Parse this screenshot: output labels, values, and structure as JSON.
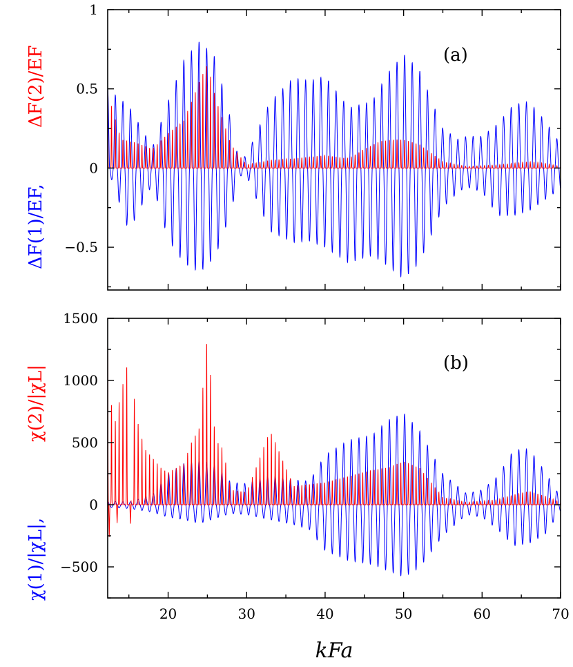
{
  "colors": {
    "series1": "#0000ff",
    "series2": "#ff0000",
    "axes": "#000000"
  },
  "chart_data": [
    {
      "type": "line",
      "panel_tag": "(a)",
      "xlim": [
        12.3,
        70
      ],
      "ylim": [
        -0.77,
        1
      ],
      "x_ticks": [
        20,
        30,
        40,
        50,
        60,
        70
      ],
      "y_ticks": [
        -0.5,
        0,
        0.5,
        1
      ],
      "y_tick_labels": [
        "−0.5",
        "0",
        "0.5",
        "1"
      ],
      "ylabel_series1": "ΔF(1)/EF,",
      "ylabel_series2": "ΔF(2)/EF",
      "series": [
        {
          "color": "#0000ff",
          "kind": "oscillating",
          "envelope_x": [
            12.3,
            15,
            18,
            20,
            22,
            24,
            26,
            28,
            29,
            30,
            33,
            36,
            38,
            40,
            43,
            46,
            48,
            50,
            52,
            55,
            57,
            58,
            60,
            62,
            64,
            66,
            68,
            70
          ],
          "envelope_upper": [
            0.5,
            0.39,
            0.13,
            0.42,
            0.68,
            0.8,
            0.7,
            0.3,
            0.05,
            0.08,
            0.42,
            0.57,
            0.55,
            0.58,
            0.38,
            0.42,
            0.6,
            0.72,
            0.62,
            0.25,
            0.18,
            0.2,
            0.2,
            0.28,
            0.4,
            0.42,
            0.3,
            0.15
          ],
          "envelope_lower": [
            0.0,
            -0.4,
            -0.1,
            -0.45,
            -0.6,
            -0.66,
            -0.56,
            -0.28,
            -0.05,
            -0.05,
            -0.4,
            -0.47,
            -0.46,
            -0.5,
            -0.6,
            -0.55,
            -0.62,
            -0.7,
            -0.6,
            -0.25,
            -0.15,
            -0.12,
            -0.15,
            -0.3,
            -0.3,
            -0.27,
            -0.2,
            -0.13
          ],
          "period": 0.97
        },
        {
          "color": "#ff0000",
          "kind": "peaked",
          "envelope_x": [
            12.3,
            14,
            16,
            18,
            20,
            22,
            24,
            25,
            26,
            27,
            28,
            30,
            33,
            36,
            40,
            43,
            45,
            47,
            49,
            50,
            52,
            55,
            58,
            62,
            64,
            66,
            68,
            70
          ],
          "envelope_upper": [
            0.48,
            0.18,
            0.16,
            0.12,
            0.22,
            0.3,
            0.55,
            0.66,
            0.45,
            0.3,
            0.15,
            0.02,
            0.05,
            0.06,
            0.08,
            0.06,
            0.12,
            0.17,
            0.18,
            0.18,
            0.15,
            0.04,
            0.01,
            0.02,
            0.03,
            0.04,
            0.03,
            0.01
          ],
          "period": 0.485
        }
      ]
    },
    {
      "type": "line",
      "panel_tag": "(b)",
      "xlim": [
        12.3,
        70
      ],
      "ylim": [
        -750,
        1500
      ],
      "x_ticks": [
        20,
        30,
        40,
        50,
        60,
        70
      ],
      "x_tick_labels": [
        "20",
        "30",
        "40",
        "50",
        "60",
        "70"
      ],
      "y_ticks": [
        -500,
        0,
        500,
        1000,
        1500
      ],
      "y_tick_labels": [
        "−500",
        "0",
        "500",
        "1000",
        "1500"
      ],
      "xlabel": "kFa",
      "ylabel_series1": "χ(1)/|χL|,",
      "ylabel_series2": "χ(2)/|χL|",
      "series": [
        {
          "color": "#0000ff",
          "kind": "oscillating",
          "envelope_x": [
            12.3,
            15,
            18,
            20,
            22,
            24,
            26,
            28,
            30,
            33,
            36,
            38,
            40,
            43,
            46,
            48,
            50,
            52,
            55,
            58,
            60,
            62,
            64,
            66,
            68,
            70
          ],
          "envelope_upper": [
            30,
            20,
            80,
            250,
            330,
            360,
            320,
            180,
            170,
            240,
            200,
            190,
            400,
            520,
            560,
            680,
            740,
            600,
            250,
            90,
            120,
            230,
            440,
            450,
            270,
            60
          ],
          "envelope_lower": [
            -20,
            -30,
            -60,
            -100,
            -120,
            -150,
            -110,
            -70,
            -80,
            -120,
            -160,
            -200,
            -370,
            -450,
            -480,
            -530,
            -580,
            -510,
            -250,
            -80,
            -100,
            -200,
            -330,
            -310,
            -240,
            -50
          ],
          "period": 0.97
        },
        {
          "color": "#ff0000",
          "kind": "peaked",
          "envelope_x": [
            12.3,
            13,
            14,
            15,
            16,
            17,
            18,
            19,
            20,
            22,
            23,
            24,
            25,
            26,
            27,
            28,
            30,
            33,
            36,
            40,
            43,
            46,
            48,
            50,
            52,
            55,
            58,
            62,
            64,
            66,
            68,
            70
          ],
          "envelope_upper": [
            1280,
            600,
            900,
            1200,
            700,
            450,
            380,
            300,
            260,
            330,
            510,
            620,
            1380,
            530,
            450,
            120,
            100,
            600,
            150,
            180,
            230,
            280,
            300,
            350,
            300,
            60,
            20,
            40,
            80,
            110,
            70,
            20
          ],
          "period": 0.485,
          "dips": [
            [
              12.5,
              -260
            ],
            [
              13.5,
              -150
            ],
            [
              15.2,
              -160
            ]
          ]
        }
      ]
    }
  ]
}
